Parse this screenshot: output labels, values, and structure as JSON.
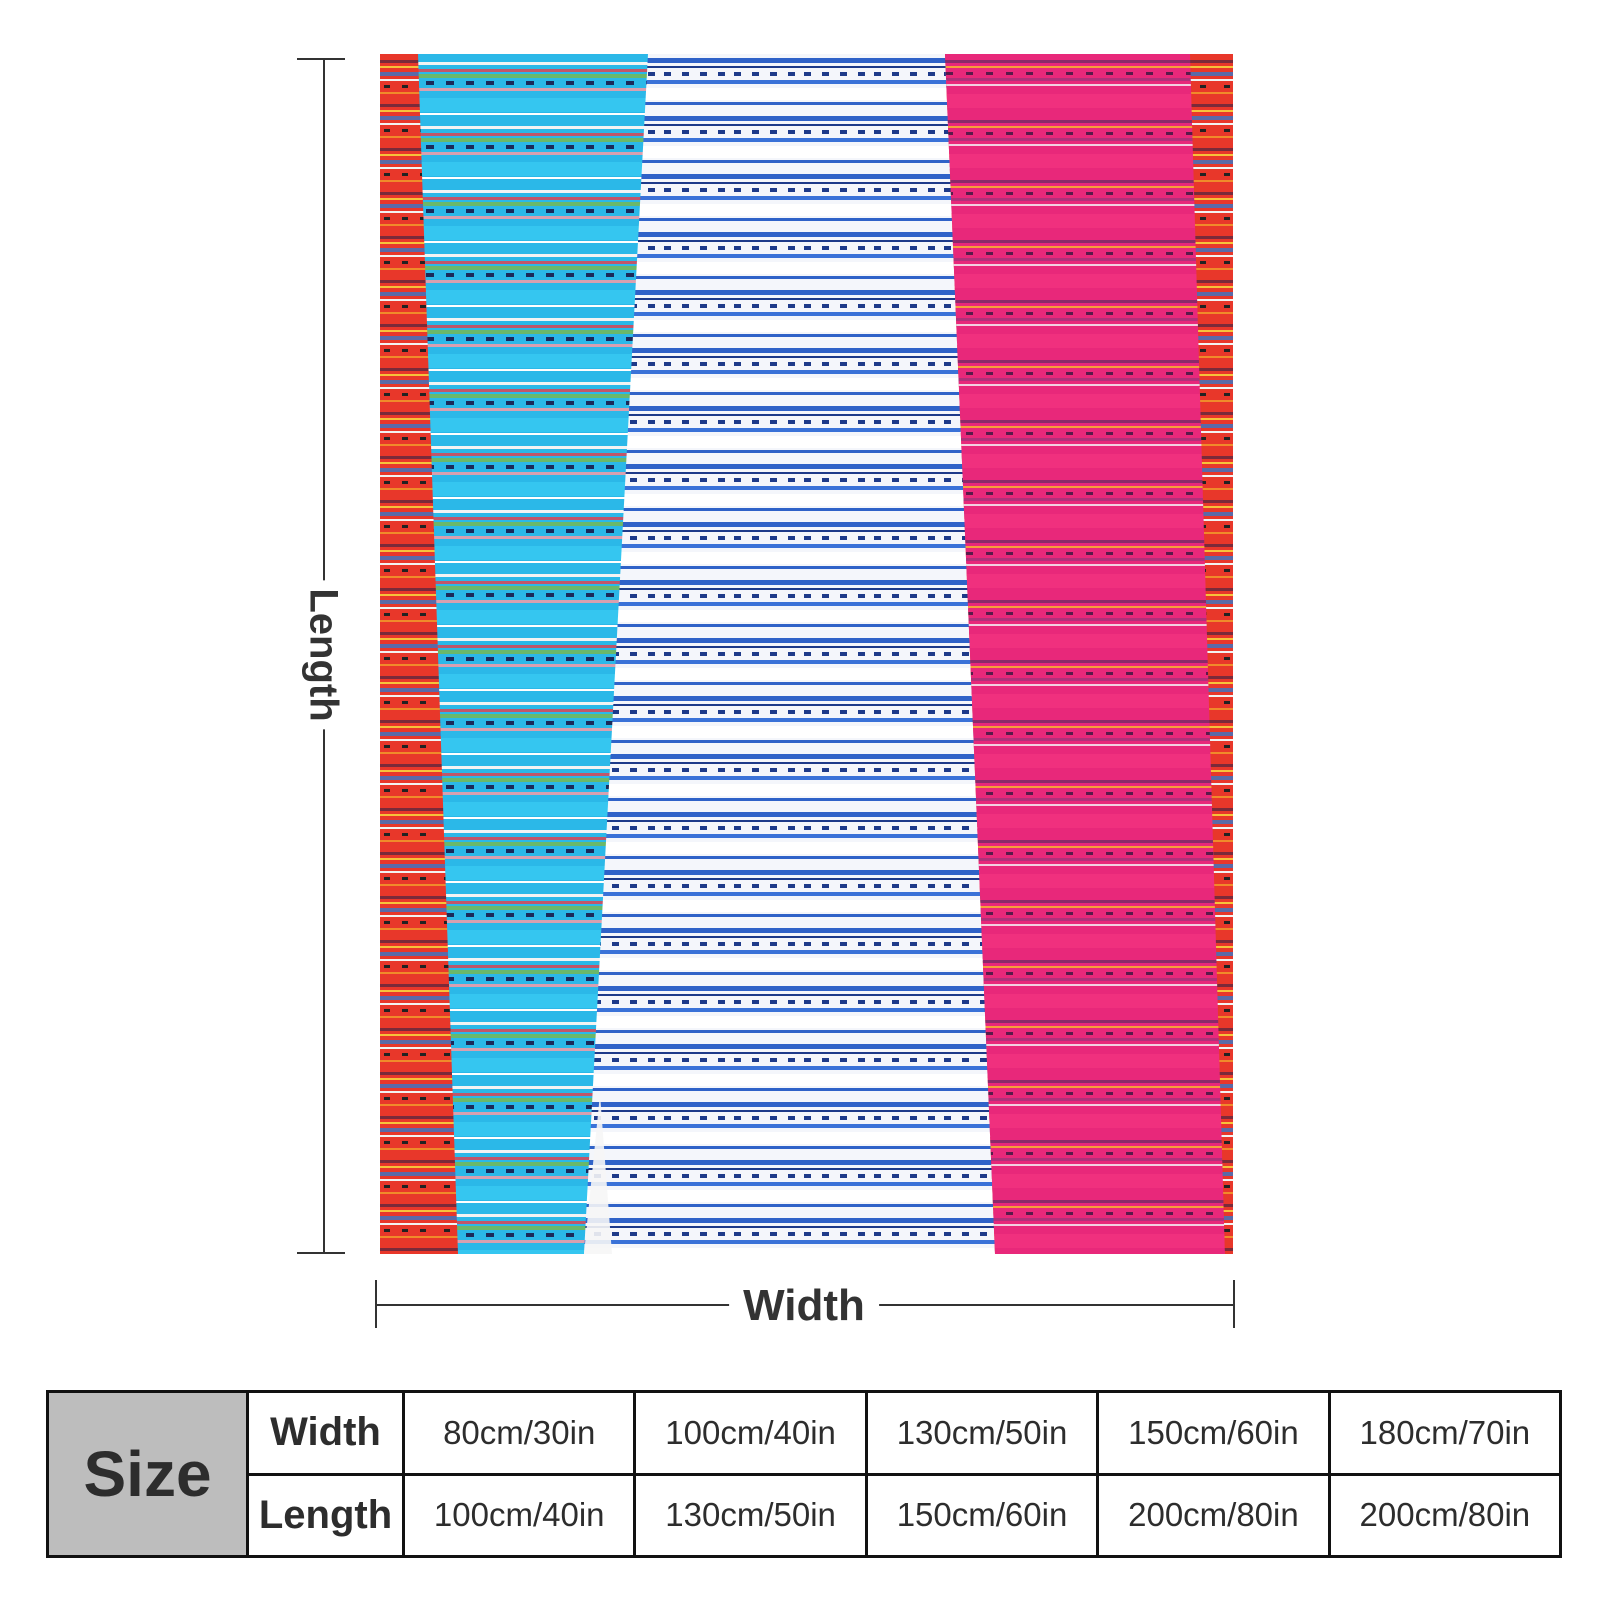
{
  "dimensions": {
    "length_label": "Length",
    "width_label": "Width"
  },
  "colors": {
    "red_panel": "#e8372a",
    "turquoise_panel": "#2bb8e8",
    "blue_white_panel": "#2f62c8",
    "pink_panel": "#e8287a",
    "table_header_bg": "#bdbdbd"
  },
  "size_table": {
    "header": "Size",
    "rows": [
      {
        "label": "Width",
        "values": [
          "80cm/30in",
          "100cm/40in",
          "130cm/50in",
          "150cm/60in",
          "180cm/70in"
        ]
      },
      {
        "label": "Length",
        "values": [
          "100cm/40in",
          "130cm/50in",
          "150cm/60in",
          "200cm/80in",
          "200cm/80in"
        ]
      }
    ]
  }
}
